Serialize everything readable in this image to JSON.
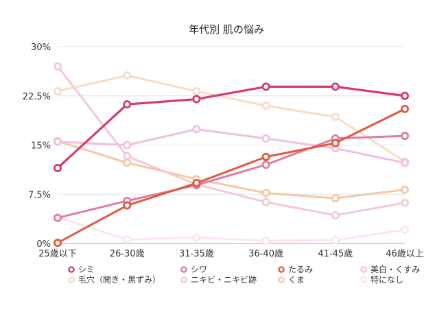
{
  "chart_data": {
    "type": "line",
    "title": "年代別 肌の悩み",
    "xlabel": "",
    "ylabel": "",
    "categories": [
      "25歳以下",
      "26-30歳",
      "31-35歳",
      "36-40歳",
      "41-45歳",
      "46歳以上"
    ],
    "ylim": [
      0,
      30
    ],
    "yticks": [
      "0%",
      "7.5%",
      "15%",
      "22.5%",
      "30%"
    ],
    "grid": true,
    "legend_position": "bottom",
    "series": [
      {
        "name": "シミ",
        "color": "#d63a6e",
        "width": 3.2,
        "values": [
          11.5,
          21.2,
          22.0,
          23.9,
          23.9,
          22.5
        ]
      },
      {
        "name": "シワ",
        "color": "#e07ba3",
        "width": 3.0,
        "values": [
          3.9,
          6.5,
          8.9,
          12.0,
          16.0,
          16.4
        ]
      },
      {
        "name": "たるみ",
        "color": "#e05a3f",
        "width": 3.0,
        "values": [
          0.1,
          5.8,
          9.2,
          13.2,
          15.3,
          20.5
        ]
      },
      {
        "name": "美白・くすみ",
        "color": "#f2bfe0",
        "width": 3.0,
        "values": [
          15.5,
          15.0,
          17.4,
          16.0,
          14.5,
          12.3
        ]
      },
      {
        "name": "毛穴（開き・黒ずみ）",
        "color": "#f9dcc7",
        "width": 3.0,
        "values": [
          23.2,
          25.6,
          23.2,
          21.0,
          19.3,
          12.5
        ]
      },
      {
        "name": "ニキビ・ニキビ跡",
        "color": "#f2c9d4",
        "width": 3.0,
        "values": [
          27.0,
          13.3,
          9.0,
          6.3,
          4.3,
          6.2
        ]
      },
      {
        "name": "くま",
        "color": "#f4c8a4",
        "width": 3.0,
        "values": [
          15.6,
          12.3,
          9.8,
          7.7,
          6.9,
          8.2
        ]
      },
      {
        "name": "特になし",
        "color": "#fbe6ee",
        "width": 3.0,
        "values": [
          4.0,
          0.6,
          0.9,
          0.4,
          0.5,
          2.1
        ]
      }
    ]
  }
}
